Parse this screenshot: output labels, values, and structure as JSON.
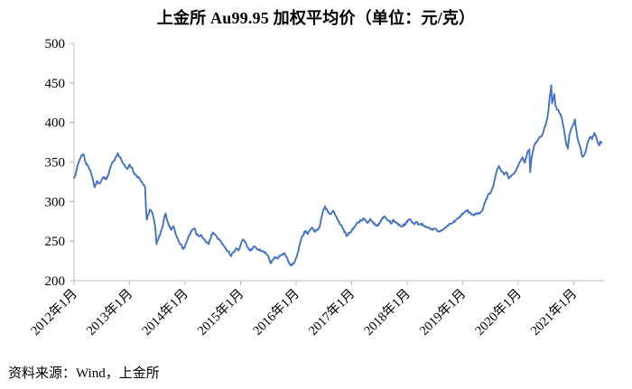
{
  "title": "上金所 Au99.95 加权平均价（单位：元/克）",
  "source_note": "资料来源：Wind，上金所",
  "chart_data": {
    "type": "line",
    "title": "上金所 Au99.95 加权平均价（单位：元/克）",
    "series_name": "Au99.95 加权平均价",
    "unit": "元/克",
    "line_color": "#4472C4",
    "axis_color": "#BFBFBF",
    "grid": false,
    "legend_position": "none",
    "ylim": [
      200,
      500
    ],
    "y_ticks": [
      500,
      450,
      400,
      350,
      300,
      250,
      200
    ],
    "x_tick_labels": [
      "2012年1月",
      "2013年1月",
      "2014年1月",
      "2015年1月",
      "2016年1月",
      "2017年1月",
      "2018年1月",
      "2019年1月",
      "2020年1月",
      "2021年1月"
    ],
    "x_range_years": [
      2012.0,
      2021.56
    ],
    "points": [
      [
        2012.0,
        330
      ],
      [
        2012.04,
        338
      ],
      [
        2012.08,
        349
      ],
      [
        2012.13,
        358
      ],
      [
        2012.17,
        360
      ],
      [
        2012.21,
        349
      ],
      [
        2012.25,
        345
      ],
      [
        2012.29,
        340
      ],
      [
        2012.33,
        331
      ],
      [
        2012.37,
        318
      ],
      [
        2012.42,
        326
      ],
      [
        2012.46,
        323
      ],
      [
        2012.5,
        328
      ],
      [
        2012.54,
        331
      ],
      [
        2012.58,
        328
      ],
      [
        2012.62,
        334
      ],
      [
        2012.67,
        346
      ],
      [
        2012.71,
        351
      ],
      [
        2012.75,
        356
      ],
      [
        2012.79,
        361
      ],
      [
        2012.83,
        356
      ],
      [
        2012.87,
        350
      ],
      [
        2012.92,
        344
      ],
      [
        2012.96,
        341
      ],
      [
        2013.0,
        347
      ],
      [
        2013.04,
        343
      ],
      [
        2013.08,
        336
      ],
      [
        2013.12,
        333
      ],
      [
        2013.17,
        330
      ],
      [
        2013.21,
        325
      ],
      [
        2013.25,
        321
      ],
      [
        2013.28,
        318
      ],
      [
        2013.295,
        293
      ],
      [
        2013.31,
        277
      ],
      [
        2013.33,
        283
      ],
      [
        2013.37,
        290
      ],
      [
        2013.42,
        283
      ],
      [
        2013.46,
        269
      ],
      [
        2013.485,
        246
      ],
      [
        2013.52,
        253
      ],
      [
        2013.56,
        261
      ],
      [
        2013.6,
        270
      ],
      [
        2013.63,
        281
      ],
      [
        2013.65,
        285
      ],
      [
        2013.67,
        278
      ],
      [
        2013.71,
        269
      ],
      [
        2013.75,
        264
      ],
      [
        2013.79,
        269
      ],
      [
        2013.83,
        259
      ],
      [
        2013.87,
        253
      ],
      [
        2013.92,
        246
      ],
      [
        2013.96,
        240
      ],
      [
        2014.0,
        244
      ],
      [
        2014.04,
        251
      ],
      [
        2014.08,
        258
      ],
      [
        2014.12,
        263
      ],
      [
        2014.17,
        266
      ],
      [
        2014.21,
        258
      ],
      [
        2014.25,
        256
      ],
      [
        2014.29,
        258
      ],
      [
        2014.33,
        253
      ],
      [
        2014.37,
        249
      ],
      [
        2014.42,
        246
      ],
      [
        2014.46,
        253
      ],
      [
        2014.5,
        261
      ],
      [
        2014.54,
        258
      ],
      [
        2014.58,
        254
      ],
      [
        2014.62,
        252
      ],
      [
        2014.67,
        247
      ],
      [
        2014.71,
        243
      ],
      [
        2014.75,
        239
      ],
      [
        2014.79,
        237
      ],
      [
        2014.83,
        231
      ],
      [
        2014.87,
        236
      ],
      [
        2014.92,
        241
      ],
      [
        2014.96,
        238
      ],
      [
        2015.0,
        245
      ],
      [
        2015.04,
        252
      ],
      [
        2015.08,
        249
      ],
      [
        2015.12,
        243
      ],
      [
        2015.17,
        238
      ],
      [
        2015.21,
        241
      ],
      [
        2015.25,
        243
      ],
      [
        2015.29,
        240
      ],
      [
        2015.33,
        239
      ],
      [
        2015.37,
        238
      ],
      [
        2015.42,
        236
      ],
      [
        2015.46,
        234
      ],
      [
        2015.5,
        231
      ],
      [
        2015.54,
        222
      ],
      [
        2015.58,
        226
      ],
      [
        2015.62,
        229
      ],
      [
        2015.67,
        228
      ],
      [
        2015.71,
        231
      ],
      [
        2015.75,
        233
      ],
      [
        2015.79,
        235
      ],
      [
        2015.83,
        229
      ],
      [
        2015.87,
        223
      ],
      [
        2015.92,
        219
      ],
      [
        2015.96,
        222
      ],
      [
        2016.0,
        229
      ],
      [
        2016.04,
        237
      ],
      [
        2016.08,
        250
      ],
      [
        2016.12,
        257
      ],
      [
        2016.17,
        263
      ],
      [
        2016.21,
        259
      ],
      [
        2016.25,
        264
      ],
      [
        2016.29,
        267
      ],
      [
        2016.33,
        262
      ],
      [
        2016.37,
        264
      ],
      [
        2016.42,
        267
      ],
      [
        2016.46,
        281
      ],
      [
        2016.5,
        291
      ],
      [
        2016.52,
        294
      ],
      [
        2016.54,
        290
      ],
      [
        2016.58,
        287
      ],
      [
        2016.62,
        284
      ],
      [
        2016.67,
        288
      ],
      [
        2016.71,
        282
      ],
      [
        2016.75,
        277
      ],
      [
        2016.79,
        271
      ],
      [
        2016.83,
        268
      ],
      [
        2016.87,
        261
      ],
      [
        2016.92,
        257
      ],
      [
        2016.96,
        261
      ],
      [
        2017.0,
        263
      ],
      [
        2017.04,
        267
      ],
      [
        2017.08,
        271
      ],
      [
        2017.12,
        274
      ],
      [
        2017.17,
        276
      ],
      [
        2017.21,
        279
      ],
      [
        2017.25,
        276
      ],
      [
        2017.29,
        273
      ],
      [
        2017.33,
        278
      ],
      [
        2017.37,
        275
      ],
      [
        2017.42,
        271
      ],
      [
        2017.46,
        269
      ],
      [
        2017.5,
        273
      ],
      [
        2017.54,
        277
      ],
      [
        2017.58,
        281
      ],
      [
        2017.62,
        279
      ],
      [
        2017.67,
        276
      ],
      [
        2017.71,
        272
      ],
      [
        2017.75,
        277
      ],
      [
        2017.79,
        274
      ],
      [
        2017.83,
        272
      ],
      [
        2017.87,
        270
      ],
      [
        2017.92,
        269
      ],
      [
        2017.96,
        272
      ],
      [
        2018.0,
        274
      ],
      [
        2018.04,
        278
      ],
      [
        2018.08,
        275
      ],
      [
        2018.12,
        272
      ],
      [
        2018.17,
        274
      ],
      [
        2018.21,
        271
      ],
      [
        2018.25,
        272
      ],
      [
        2018.29,
        270
      ],
      [
        2018.33,
        269
      ],
      [
        2018.37,
        267
      ],
      [
        2018.42,
        265
      ],
      [
        2018.46,
        264
      ],
      [
        2018.5,
        266
      ],
      [
        2018.54,
        263
      ],
      [
        2018.58,
        262
      ],
      [
        2018.62,
        264
      ],
      [
        2018.67,
        266
      ],
      [
        2018.71,
        268
      ],
      [
        2018.75,
        271
      ],
      [
        2018.79,
        272
      ],
      [
        2018.83,
        274
      ],
      [
        2018.87,
        276
      ],
      [
        2018.92,
        279
      ],
      [
        2018.96,
        282
      ],
      [
        2019.0,
        284
      ],
      [
        2019.04,
        287
      ],
      [
        2019.08,
        289
      ],
      [
        2019.12,
        286
      ],
      [
        2019.17,
        284
      ],
      [
        2019.21,
        283
      ],
      [
        2019.25,
        284
      ],
      [
        2019.29,
        285
      ],
      [
        2019.33,
        287
      ],
      [
        2019.37,
        292
      ],
      [
        2019.42,
        303
      ],
      [
        2019.46,
        309
      ],
      [
        2019.5,
        311
      ],
      [
        2019.54,
        317
      ],
      [
        2019.58,
        329
      ],
      [
        2019.62,
        341
      ],
      [
        2019.65,
        345
      ],
      [
        2019.67,
        342
      ],
      [
        2019.71,
        338
      ],
      [
        2019.75,
        334
      ],
      [
        2019.79,
        337
      ],
      [
        2019.83,
        329
      ],
      [
        2019.87,
        332
      ],
      [
        2019.92,
        335
      ],
      [
        2019.96,
        339
      ],
      [
        2020.0,
        345
      ],
      [
        2020.04,
        351
      ],
      [
        2020.08,
        356
      ],
      [
        2020.12,
        349
      ],
      [
        2020.16,
        361
      ],
      [
        2020.2,
        366
      ],
      [
        2020.215,
        337
      ],
      [
        2020.23,
        350
      ],
      [
        2020.26,
        362
      ],
      [
        2020.29,
        371
      ],
      [
        2020.33,
        376
      ],
      [
        2020.37,
        380
      ],
      [
        2020.42,
        383
      ],
      [
        2020.46,
        390
      ],
      [
        2020.5,
        399
      ],
      [
        2020.54,
        412
      ],
      [
        2020.57,
        434
      ],
      [
        2020.595,
        447
      ],
      [
        2020.61,
        424
      ],
      [
        2020.63,
        429
      ],
      [
        2020.65,
        436
      ],
      [
        2020.67,
        421
      ],
      [
        2020.71,
        416
      ],
      [
        2020.75,
        411
      ],
      [
        2020.79,
        404
      ],
      [
        2020.83,
        388
      ],
      [
        2020.87,
        371
      ],
      [
        2020.895,
        367
      ],
      [
        2020.92,
        384
      ],
      [
        2020.96,
        393
      ],
      [
        2021.0,
        398
      ],
      [
        2021.02,
        404
      ],
      [
        2021.05,
        388
      ],
      [
        2021.08,
        377
      ],
      [
        2021.12,
        368
      ],
      [
        2021.15,
        357
      ],
      [
        2021.19,
        359
      ],
      [
        2021.23,
        368
      ],
      [
        2021.27,
        378
      ],
      [
        2021.3,
        382
      ],
      [
        2021.33,
        379
      ],
      [
        2021.37,
        387
      ],
      [
        2021.4,
        383
      ],
      [
        2021.43,
        375
      ],
      [
        2021.46,
        371
      ],
      [
        2021.48,
        376
      ],
      [
        2021.5,
        374
      ]
    ]
  }
}
